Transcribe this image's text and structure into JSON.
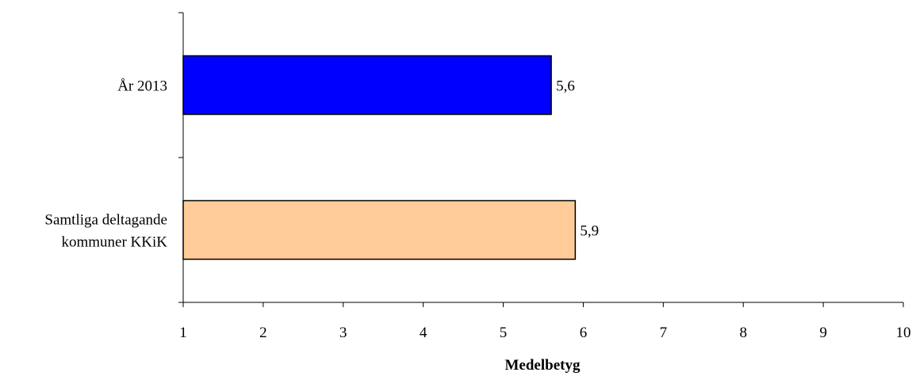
{
  "chart_data": {
    "type": "bar",
    "orientation": "horizontal",
    "title": "",
    "xlabel": "Medelbetyg",
    "ylabel": "",
    "xlim": [
      1,
      10
    ],
    "x_ticks": [
      "1",
      "2",
      "3",
      "4",
      "5",
      "6",
      "7",
      "8",
      "9",
      "10"
    ],
    "grid": false,
    "legend": "none",
    "categories": [
      {
        "lines": [
          "År 2013"
        ]
      },
      {
        "lines": [
          "Samtliga deltagande",
          "kommuner KKiK"
        ]
      }
    ],
    "values": [
      5.6,
      5.9
    ],
    "value_labels": [
      "5,6",
      "5,9"
    ],
    "colors": [
      "#0000ff",
      "#ffcc99"
    ]
  }
}
